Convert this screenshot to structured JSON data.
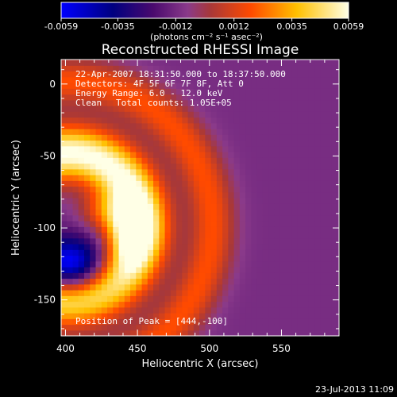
{
  "chart_data": {
    "type": "heatmap",
    "title": "Reconstructed RHESSI Image",
    "xlabel": "Heliocentric X (arcsec)",
    "ylabel": "Heliocentric Y (arcsec)",
    "xlim": [
      397,
      590
    ],
    "ylim": [
      -175,
      17
    ],
    "x_ticks": [
      400,
      450,
      500,
      550
    ],
    "y_ticks": [
      0,
      -50,
      -100,
      -150
    ],
    "colorbar": {
      "label": "(photons cm⁻² s⁻¹ asec⁻²)",
      "range": [
        -0.0059,
        0.0059
      ],
      "ticks": [
        "-0.0059",
        "-0.0035",
        "-0.0012",
        "0.0012",
        "0.0035",
        "0.0059"
      ]
    },
    "annotations": {
      "time": "22-Apr-2007 18:31:50.000 to 18:37:50.000",
      "detectors": "Detectors: 4F 5F 6F 7F 8F, Att 0",
      "energy": "Energy Range: 6.0 - 12.0 keV",
      "method": "Clean",
      "counts": "Total counts: 1.05E+05",
      "peak": "Position of Peak = [444,-100]"
    },
    "peak_position": [
      444,
      -100
    ],
    "footer_date": "23-Jul-2013 11:09",
    "emission_model": {
      "background": -0.0011,
      "components": [
        {
          "type": "ring",
          "cx": 402,
          "cy": -98,
          "r": 50,
          "sigma": 14,
          "amp": 0.0072
        },
        {
          "type": "ring",
          "cx": 402,
          "cy": -98,
          "r": 100,
          "sigma": 11,
          "amp": 0.003
        },
        {
          "type": "gauss",
          "cx": 444,
          "cy": -100,
          "sx": 11,
          "sy": 16,
          "amp": 0.0035
        },
        {
          "type": "gauss",
          "cx": 426,
          "cy": -88,
          "sx": 12,
          "sy": 10,
          "amp": 0.0022
        },
        {
          "type": "gauss",
          "cx": 402,
          "cy": -128,
          "sx": 20,
          "sy": 14,
          "amp": -0.0065
        }
      ]
    },
    "colors": {
      "background": "#000000",
      "text": "#ffffff",
      "colormap": [
        "#0000ff",
        "#000080",
        "#4a0a6e",
        "#8a3a8a",
        "#a83838",
        "#ff4a00",
        "#ffc000",
        "#ffffe6"
      ]
    }
  }
}
